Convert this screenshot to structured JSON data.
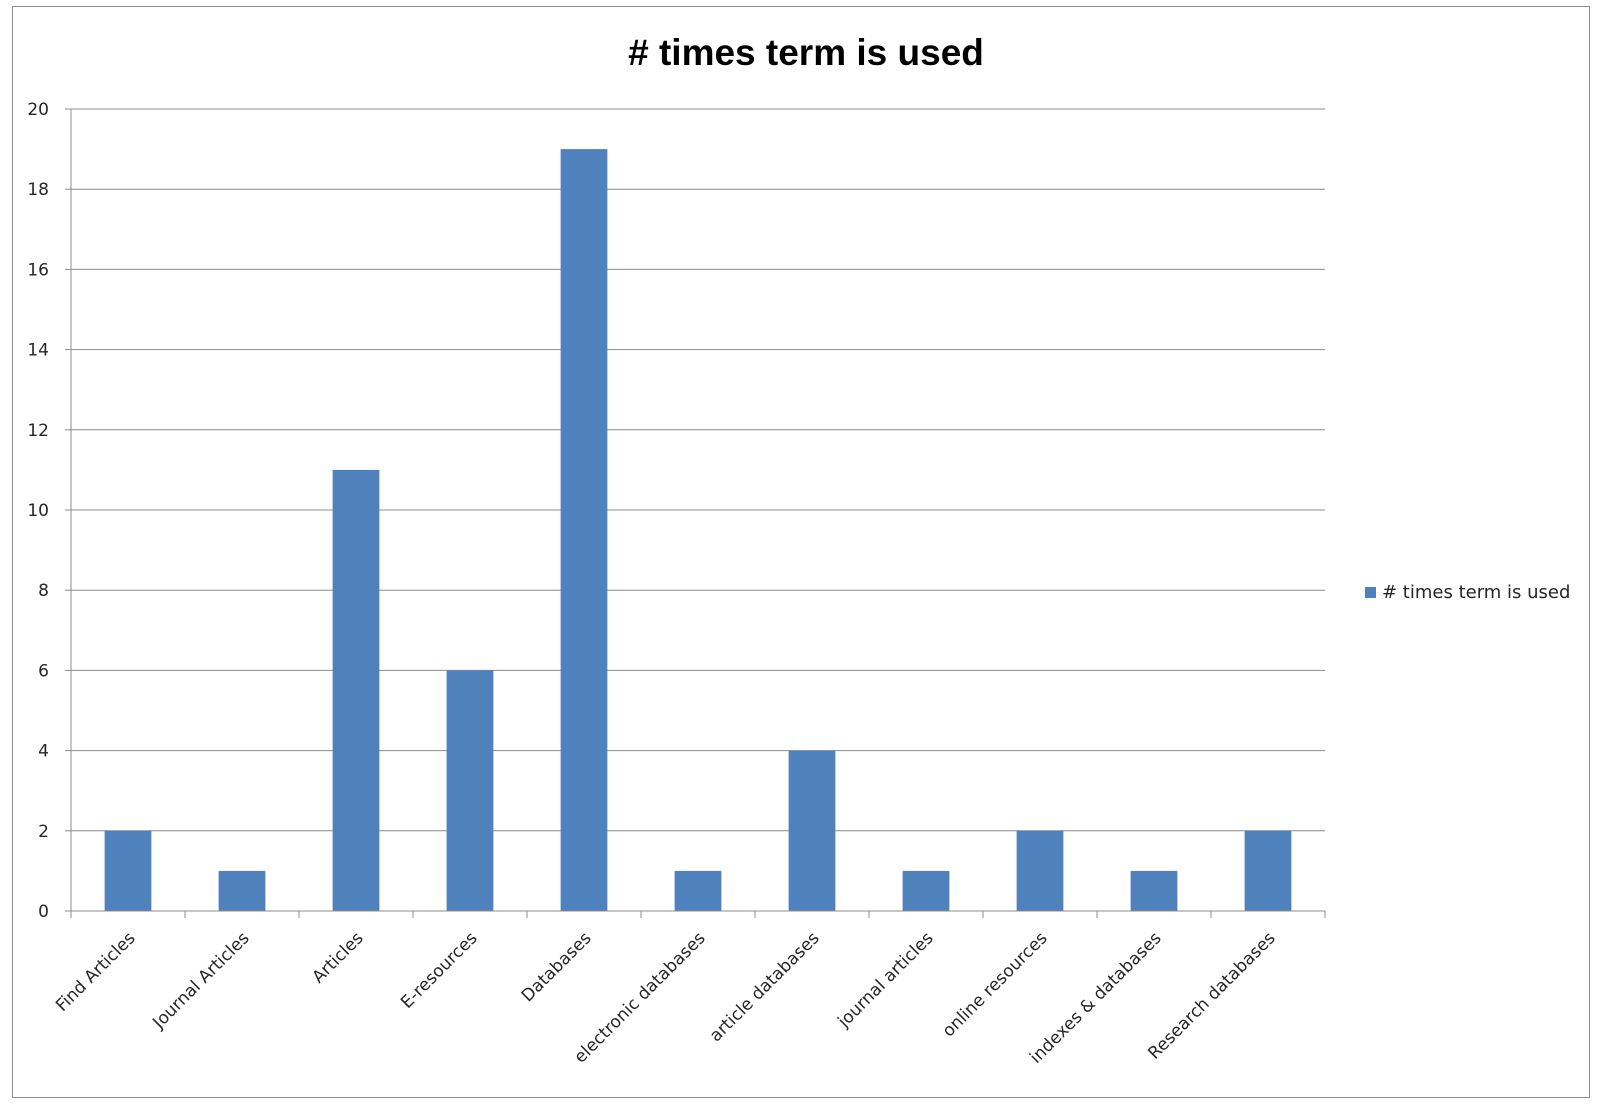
{
  "chart_data": {
    "type": "bar",
    "title": "# times term is used",
    "xlabel": "",
    "ylabel": "",
    "categories": [
      "Find Articles",
      "Journal Articles",
      "Articles",
      "E-resources",
      "Databases",
      "electronic databases",
      "article databases",
      "journal articles",
      "online resources",
      "indexes & databases",
      "Research databases"
    ],
    "series": [
      {
        "name": "# times term is used",
        "color": "#4f81bd",
        "values": [
          2,
          1,
          11,
          6,
          19,
          1,
          4,
          1,
          2,
          1,
          2
        ]
      }
    ],
    "ylim": [
      0,
      20
    ],
    "yticks": [
      0,
      2,
      4,
      6,
      8,
      10,
      12,
      14,
      16,
      18,
      20
    ],
    "grid": true,
    "legend_position": "right"
  }
}
